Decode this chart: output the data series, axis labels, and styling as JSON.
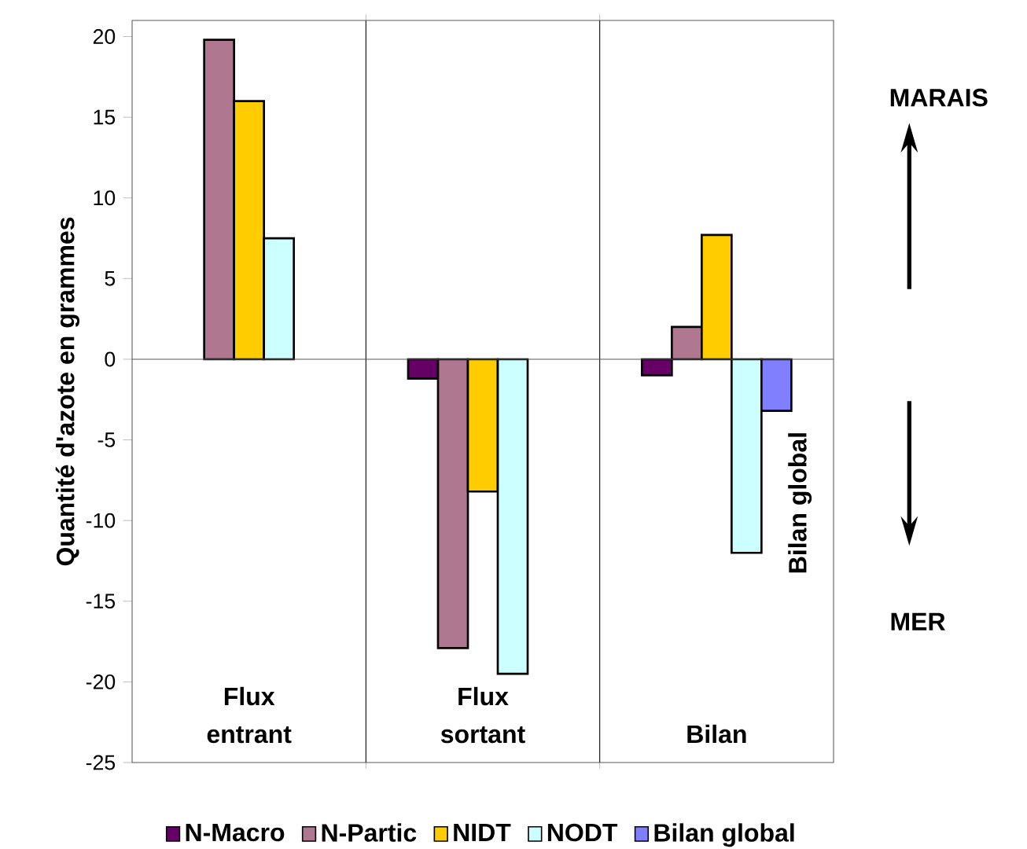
{
  "chart_data": {
    "type": "bar",
    "ylabel": "Quantité d'azote en grammes",
    "categories": [
      "Flux entrant",
      "Flux sortant",
      "Bilan"
    ],
    "series": [
      {
        "name": "N-Macro",
        "color": "#660066",
        "values": [
          null,
          -1.2,
          -1.0
        ]
      },
      {
        "name": "N-Partic",
        "color": "#b07890",
        "values": [
          19.8,
          -17.9,
          2.0
        ]
      },
      {
        "name": "NIDT",
        "color": "#ffcc00",
        "values": [
          16.0,
          -8.2,
          7.7
        ]
      },
      {
        "name": "NODT",
        "color": "#ccffff",
        "values": [
          7.5,
          -19.5,
          -12.0
        ]
      },
      {
        "name": "Bilan global",
        "color": "#8080ff",
        "values": [
          null,
          null,
          -3.2
        ]
      }
    ],
    "ylim": [
      -25,
      21
    ],
    "yticks": [
      -25,
      -20,
      -15,
      -10,
      -5,
      0,
      5,
      10,
      15,
      20
    ],
    "grid": "x",
    "legend": "bottom",
    "annotations": [
      "MARAIS",
      "MER",
      "Bilan global"
    ]
  }
}
